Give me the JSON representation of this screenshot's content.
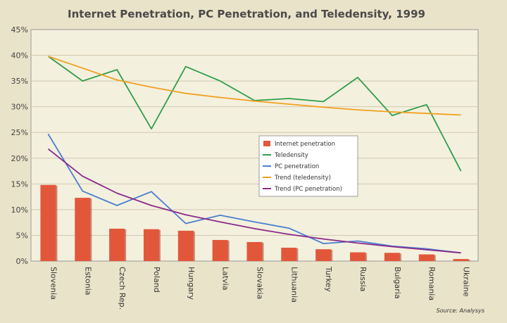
{
  "chart_data": {
    "type": "bar",
    "title": "Internet Penetration, PC Penetration, and Teledensity, 1999",
    "source": "Source: Analysys",
    "categories": [
      "Slovenia",
      "Estonia",
      "Czech Rep.",
      "Poland",
      "Hungary",
      "Latvia",
      "Slovakia",
      "Lithuania",
      "Turkey",
      "Russia",
      "Bulgaria",
      "Romania",
      "Ukraine"
    ],
    "ylim": [
      0,
      45
    ],
    "yticks": [
      "0%",
      "5%",
      "10%",
      "15%",
      "20%",
      "25%",
      "30%",
      "35%",
      "40%",
      "45%"
    ],
    "grid": true,
    "legend_position": "center-right",
    "series": [
      {
        "name": "Internet penetration",
        "kind": "bar",
        "color": "#e2573a",
        "values": [
          14.8,
          12.3,
          6.3,
          6.2,
          5.9,
          4.1,
          3.7,
          2.6,
          2.3,
          1.7,
          1.6,
          1.3,
          0.4
        ]
      },
      {
        "name": "Teledensity",
        "kind": "line",
        "color": "#2e9e4a",
        "values": [
          39.8,
          35.0,
          37.2,
          25.7,
          37.8,
          35.0,
          31.2,
          31.6,
          31.0,
          35.7,
          28.3,
          30.4,
          17.5
        ]
      },
      {
        "name": "PC penetration",
        "kind": "line",
        "color": "#4a7fd0",
        "values": [
          24.7,
          13.6,
          10.8,
          13.5,
          7.3,
          8.9,
          7.6,
          6.4,
          3.4,
          3.9,
          2.9,
          2.4,
          1.6
        ]
      },
      {
        "name": "Trend (teledensity)",
        "kind": "line",
        "color": "#f0a020",
        "values": [
          39.8,
          37.5,
          35.2,
          33.8,
          32.6,
          31.8,
          31.1,
          30.5,
          29.9,
          29.4,
          29.0,
          28.7,
          28.4
        ]
      },
      {
        "name": "Trend (PC penetration)",
        "kind": "line",
        "color": "#8a2a8a",
        "values": [
          21.8,
          16.5,
          13.2,
          10.8,
          9.0,
          7.6,
          6.3,
          5.2,
          4.3,
          3.5,
          2.8,
          2.2,
          1.6
        ]
      }
    ]
  }
}
